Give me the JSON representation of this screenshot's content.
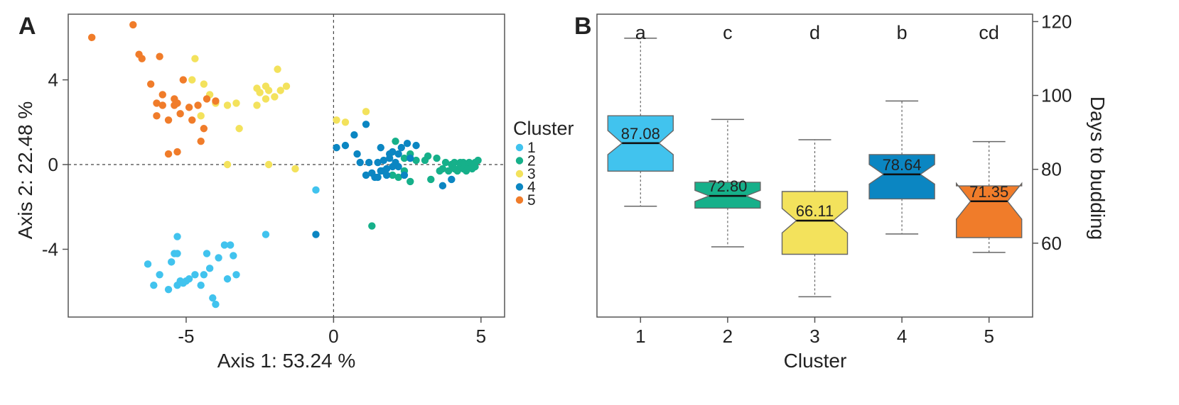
{
  "panels": {
    "a_tag": "A",
    "b_tag": "B"
  },
  "colors": {
    "1": "#41c3ee",
    "2": "#16b08a",
    "3": "#f3e25c",
    "4": "#0b86c2",
    "5": "#f07c2a"
  },
  "chart_data": [
    {
      "type": "scatter",
      "xlabel": "Axis 1: 53.24 %",
      "ylabel": "Axis 2: 22.48 %",
      "xlim": [
        -9,
        5.8
      ],
      "ylim": [
        -7.2,
        7.1
      ],
      "xticks": [
        -5,
        0,
        5
      ],
      "xtick_labels": [
        "-5",
        "0",
        "5"
      ],
      "yticks": [
        -4,
        0,
        4
      ],
      "ytick_labels": [
        "-4",
        "0",
        "4"
      ],
      "reference_lines": {
        "x": 0,
        "y": 0
      },
      "legend": {
        "title": "Cluster",
        "position": "right",
        "items": [
          {
            "key": "1",
            "label": "1"
          },
          {
            "key": "2",
            "label": "2"
          },
          {
            "key": "3",
            "label": "3"
          },
          {
            "key": "4",
            "label": "4"
          },
          {
            "key": "5",
            "label": "5"
          }
        ]
      },
      "series": [
        {
          "cluster": "1",
          "points": [
            [
              -5.3,
              -3.4
            ],
            [
              -6.3,
              -4.7
            ],
            [
              -6.1,
              -5.7
            ],
            [
              -5.9,
              -5.2
            ],
            [
              -5.6,
              -5.9
            ],
            [
              -5.5,
              -4.6
            ],
            [
              -5.4,
              -4.2
            ],
            [
              -5.3,
              -4.2
            ],
            [
              -5.3,
              -5.7
            ],
            [
              -5.2,
              -5.5
            ],
            [
              -5.1,
              -5.6
            ],
            [
              -5.0,
              -5.5
            ],
            [
              -4.9,
              -5.4
            ],
            [
              -4.7,
              -5.2
            ],
            [
              -4.5,
              -5.7
            ],
            [
              -4.4,
              -5.2
            ],
            [
              -4.3,
              -4.2
            ],
            [
              -4.2,
              -4.9
            ],
            [
              -4.1,
              -6.3
            ],
            [
              -4.0,
              -6.6
            ],
            [
              -3.9,
              -4.4
            ],
            [
              -3.7,
              -3.8
            ],
            [
              -3.5,
              -3.8
            ],
            [
              -3.4,
              -4.3
            ],
            [
              -3.3,
              -5.2
            ],
            [
              -3.6,
              -5.4
            ],
            [
              -2.3,
              -3.3
            ],
            [
              -0.6,
              -1.2
            ]
          ]
        },
        {
          "cluster": "2",
          "points": [
            [
              1.3,
              -2.9
            ],
            [
              2.1,
              1.1
            ],
            [
              2.2,
              -0.6
            ],
            [
              2.4,
              0.3
            ],
            [
              2.6,
              0.5
            ],
            [
              2.6,
              -0.8
            ],
            [
              2.8,
              0.2
            ],
            [
              3.2,
              0.4
            ],
            [
              3.3,
              -0.7
            ],
            [
              3.1,
              0.2
            ],
            [
              3.7,
              -0.2
            ],
            [
              3.8,
              0.1
            ],
            [
              3.9,
              -0.3
            ],
            [
              4.0,
              0.0
            ],
            [
              4.1,
              -0.2
            ],
            [
              4.1,
              0.1
            ],
            [
              4.2,
              -0.3
            ],
            [
              4.3,
              -0.1
            ],
            [
              4.3,
              0.1
            ],
            [
              4.4,
              -0.2
            ],
            [
              4.5,
              0.0
            ],
            [
              4.5,
              -0.3
            ],
            [
              4.6,
              -0.1
            ],
            [
              4.6,
              0.1
            ],
            [
              4.7,
              -0.2
            ],
            [
              4.7,
              0.0
            ],
            [
              4.8,
              -0.1
            ],
            [
              4.8,
              0.1
            ],
            [
              4.9,
              0.2
            ],
            [
              4.4,
              0.1
            ],
            [
              3.6,
              -0.3
            ],
            [
              3.5,
              0.3
            ],
            [
              2.0,
              -0.5
            ],
            [
              2.4,
              -0.3
            ]
          ]
        },
        {
          "cluster": "3",
          "points": [
            [
              -4.7,
              5.0
            ],
            [
              -4.8,
              4.0
            ],
            [
              -4.4,
              3.8
            ],
            [
              -4.2,
              3.3
            ],
            [
              -4.0,
              2.9
            ],
            [
              -4.5,
              2.3
            ],
            [
              -3.6,
              2.8
            ],
            [
              -3.3,
              2.9
            ],
            [
              -3.2,
              1.7
            ],
            [
              -2.6,
              3.6
            ],
            [
              -2.5,
              3.4
            ],
            [
              -2.3,
              3.7
            ],
            [
              -2.2,
              3.5
            ],
            [
              -2.0,
              3.2
            ],
            [
              -1.9,
              4.5
            ],
            [
              -1.8,
              3.5
            ],
            [
              -1.6,
              3.7
            ],
            [
              -2.6,
              2.8
            ],
            [
              -2.3,
              3.1
            ],
            [
              -3.6,
              0.0
            ],
            [
              -2.2,
              0.0
            ],
            [
              -1.3,
              -0.2
            ],
            [
              0.1,
              2.1
            ],
            [
              0.4,
              2.0
            ],
            [
              1.1,
              2.5
            ]
          ]
        },
        {
          "cluster": "4",
          "points": [
            [
              0.1,
              0.8
            ],
            [
              0.4,
              0.9
            ],
            [
              0.7,
              1.4
            ],
            [
              0.8,
              0.5
            ],
            [
              0.9,
              0.1
            ],
            [
              1.1,
              1.9
            ],
            [
              1.2,
              0.1
            ],
            [
              1.3,
              -0.4
            ],
            [
              1.4,
              -0.6
            ],
            [
              1.5,
              0.1
            ],
            [
              1.6,
              -0.3
            ],
            [
              1.6,
              0.8
            ],
            [
              1.7,
              0.2
            ],
            [
              1.8,
              -0.2
            ],
            [
              1.8,
              -0.5
            ],
            [
              1.9,
              0.3
            ],
            [
              2.0,
              0.6
            ],
            [
              2.1,
              0.1
            ],
            [
              2.2,
              -0.1
            ],
            [
              2.3,
              0.8
            ],
            [
              2.4,
              -0.5
            ],
            [
              2.5,
              1.0
            ],
            [
              2.6,
              0.3
            ],
            [
              2.8,
              0.9
            ],
            [
              1.5,
              -0.6
            ],
            [
              1.7,
              -0.3
            ],
            [
              2.0,
              -0.1
            ],
            [
              3.7,
              -1.0
            ],
            [
              4.0,
              -0.7
            ],
            [
              1.1,
              -0.5
            ],
            [
              -0.6,
              -3.3
            ],
            [
              2.2,
              0.5
            ],
            [
              1.9,
              0.5
            ]
          ]
        },
        {
          "cluster": "5",
          "points": [
            [
              -8.2,
              6.0
            ],
            [
              -6.8,
              6.6
            ],
            [
              -6.6,
              5.2
            ],
            [
              -6.5,
              5.0
            ],
            [
              -5.9,
              5.1
            ],
            [
              -6.2,
              3.8
            ],
            [
              -6.0,
              2.9
            ],
            [
              -5.8,
              2.8
            ],
            [
              -5.6,
              2.1
            ],
            [
              -5.6,
              0.5
            ],
            [
              -5.3,
              0.6
            ],
            [
              -5.4,
              3.1
            ],
            [
              -5.3,
              2.9
            ],
            [
              -5.2,
              2.4
            ],
            [
              -5.1,
              4.0
            ],
            [
              -4.9,
              2.7
            ],
            [
              -4.8,
              2.1
            ],
            [
              -4.6,
              2.8
            ],
            [
              -4.5,
              1.1
            ],
            [
              -4.4,
              1.7
            ],
            [
              -4.3,
              3.1
            ],
            [
              -4.0,
              3.0
            ],
            [
              -5.8,
              3.3
            ],
            [
              -6.0,
              2.3
            ],
            [
              -5.4,
              2.8
            ]
          ]
        }
      ]
    },
    {
      "type": "box",
      "xlabel": "Cluster",
      "ylabel": "Days to budding",
      "categories": [
        "1",
        "2",
        "3",
        "4",
        "5"
      ],
      "ylim": [
        40,
        122
      ],
      "yticks": [
        60,
        80,
        100,
        120
      ],
      "ytick_labels": [
        "60",
        "80",
        "100",
        "120"
      ],
      "y_axis_side": "right",
      "notched": true,
      "boxes": [
        {
          "category": "1",
          "color_key": "1",
          "whisker_low": 70.0,
          "q1": 79.5,
          "median": 87.08,
          "q3": 94.5,
          "whisker_high": 115.5,
          "notch_low": 84.0,
          "notch_high": 90.5,
          "letter": "a",
          "median_label": "87.08"
        },
        {
          "category": "2",
          "color_key": "2",
          "whisker_low": 59.0,
          "q1": 69.5,
          "median": 72.8,
          "q3": 76.5,
          "whisker_high": 93.5,
          "notch_low": 71.3,
          "notch_high": 74.3,
          "letter": "c",
          "median_label": "72.80"
        },
        {
          "category": "3",
          "color_key": "3",
          "whisker_low": 45.5,
          "q1": 57.0,
          "median": 66.11,
          "q3": 74.0,
          "whisker_high": 88.0,
          "notch_low": 62.8,
          "notch_high": 69.4,
          "letter": "d",
          "median_label": "66.11"
        },
        {
          "category": "4",
          "color_key": "4",
          "whisker_low": 62.5,
          "q1": 72.0,
          "median": 78.64,
          "q3": 84.0,
          "whisker_high": 98.5,
          "notch_low": 76.0,
          "notch_high": 81.3,
          "letter": "b",
          "median_label": "78.64"
        },
        {
          "category": "5",
          "color_key": "5",
          "whisker_low": 57.5,
          "q1": 61.5,
          "median": 71.35,
          "q3": 75.5,
          "whisker_high": 87.5,
          "notch_low": 66.5,
          "notch_high": 76.2,
          "letter": "cd",
          "median_label": "71.35"
        }
      ]
    }
  ]
}
